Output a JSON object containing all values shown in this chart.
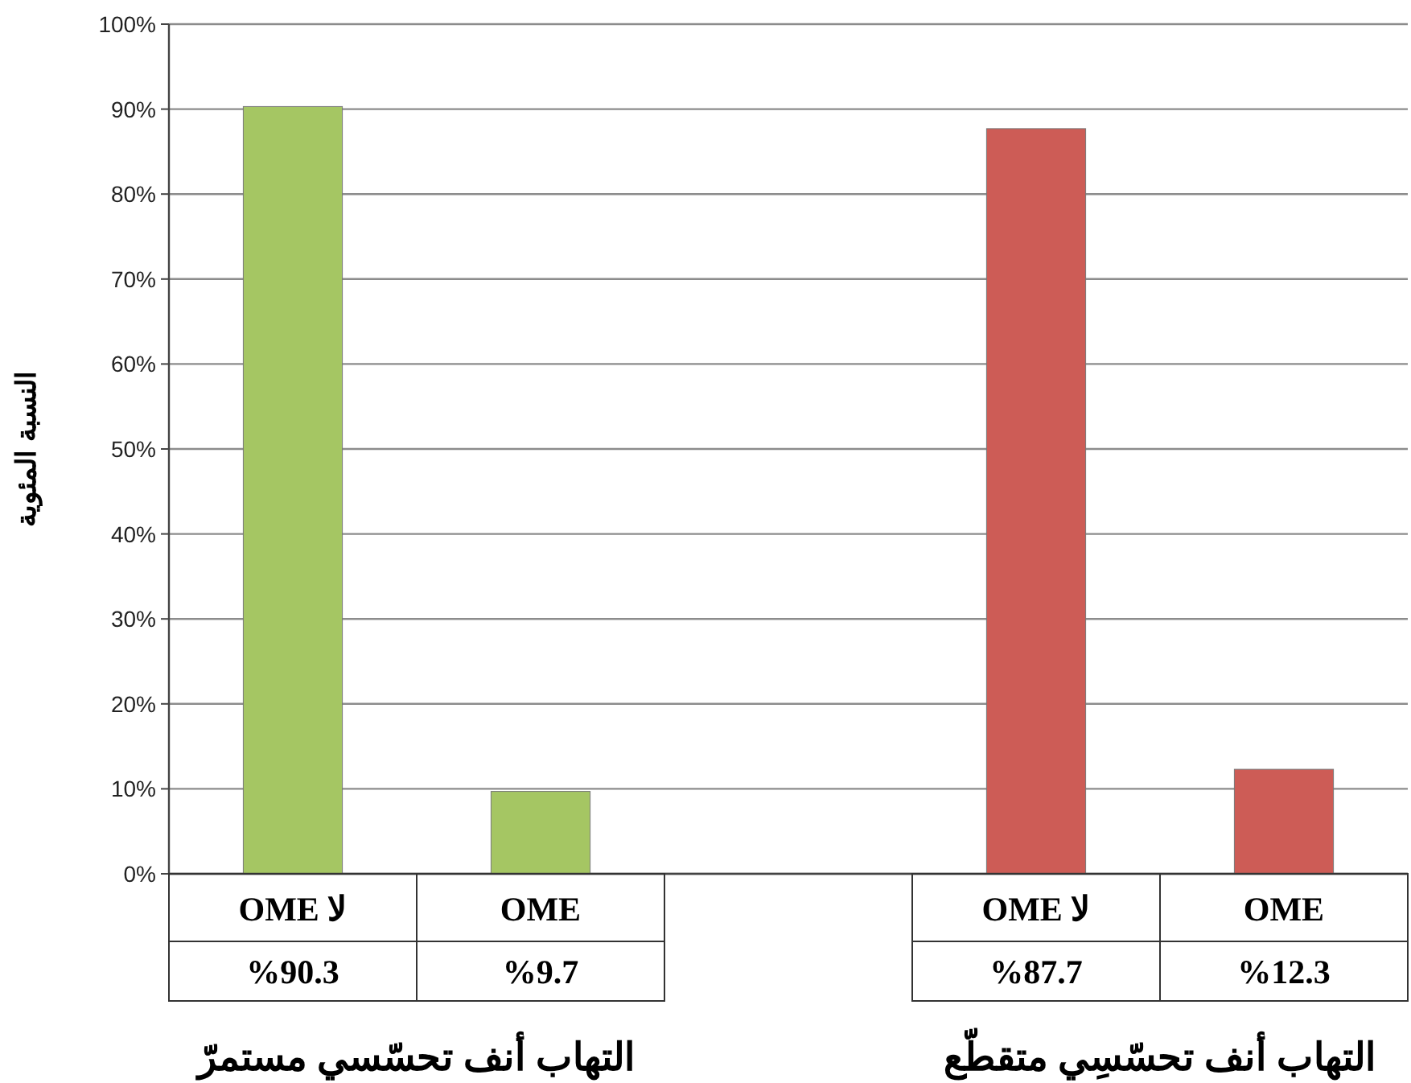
{
  "chart_data": {
    "type": "bar",
    "ylabel": "النسبة المئوية",
    "categories": [
      "لا OME",
      "OME",
      null,
      "لا OME",
      "OME"
    ],
    "values": [
      90.3,
      9.7,
      null,
      87.7,
      12.3
    ],
    "colors": [
      "#a5c663",
      "#a5c663",
      null,
      "#cd5c56",
      "#cd5c56"
    ],
    "value_labels": [
      "%90.3",
      "%9.7",
      null,
      "%87.7",
      "%12.3"
    ],
    "annotations": [
      "التهاب أنف تحسّسي مستمرّ",
      "التهاب أنف تحسّسِي متقطّع"
    ],
    "ylim": [
      0,
      100
    ],
    "yticks": [
      {
        "value": 0,
        "label": "0%"
      },
      {
        "value": 10,
        "label": "10%"
      },
      {
        "value": 20,
        "label": "20%"
      },
      {
        "value": 30,
        "label": "30%"
      },
      {
        "value": 40,
        "label": "40%"
      },
      {
        "value": 50,
        "label": "50%"
      },
      {
        "value": 60,
        "label": "60%"
      },
      {
        "value": 70,
        "label": "70%"
      },
      {
        "value": 80,
        "label": "80%"
      },
      {
        "value": 90,
        "label": "90%"
      },
      {
        "value": 100,
        "label": "100%"
      }
    ],
    "grid": "y"
  }
}
